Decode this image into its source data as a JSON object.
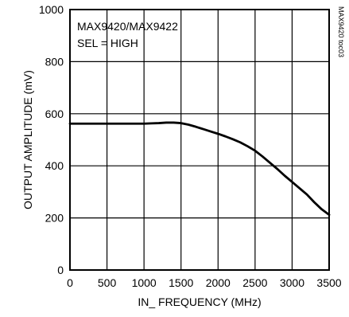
{
  "chart_data": {
    "type": "line",
    "title": "",
    "xlabel": "IN_ FREQUENCY (MHz)",
    "ylabel": "OUTPUT AMPLITUDE (mV)",
    "xlim": [
      0,
      3500
    ],
    "ylim": [
      0,
      1000
    ],
    "xticks": [
      0,
      500,
      1000,
      1500,
      2000,
      2500,
      3000,
      3500
    ],
    "yticks": [
      0,
      200,
      400,
      600,
      800,
      1000
    ],
    "xtick_labels": [
      "0",
      "500",
      "1000",
      "1500",
      "2000",
      "2500",
      "3000",
      "3500"
    ],
    "ytick_labels": [
      "0",
      "200",
      "400",
      "600",
      "800",
      "1000"
    ],
    "grid": true,
    "legend": "none",
    "annotations": [
      "MAX9420/MAX9422",
      "SEL = HIGH"
    ],
    "figure_code": "MAX9420 toc03",
    "series": [
      {
        "color": "#000000",
        "x": [
          0,
          250,
          500,
          750,
          1000,
          1100,
          1200,
          1300,
          1400,
          1500,
          1600,
          1700,
          1800,
          1900,
          2000,
          2100,
          2200,
          2300,
          2400,
          2500,
          2600,
          2700,
          2800,
          2900,
          3000,
          3100,
          3200,
          3300,
          3400,
          3500
        ],
        "y": [
          562,
          562,
          562,
          562,
          562,
          563,
          564,
          566,
          566,
          564,
          558,
          550,
          541,
          532,
          523,
          513,
          502,
          490,
          475,
          458,
          436,
          412,
          388,
          362,
          338,
          314,
          290,
          260,
          233,
          212
        ]
      }
    ]
  }
}
